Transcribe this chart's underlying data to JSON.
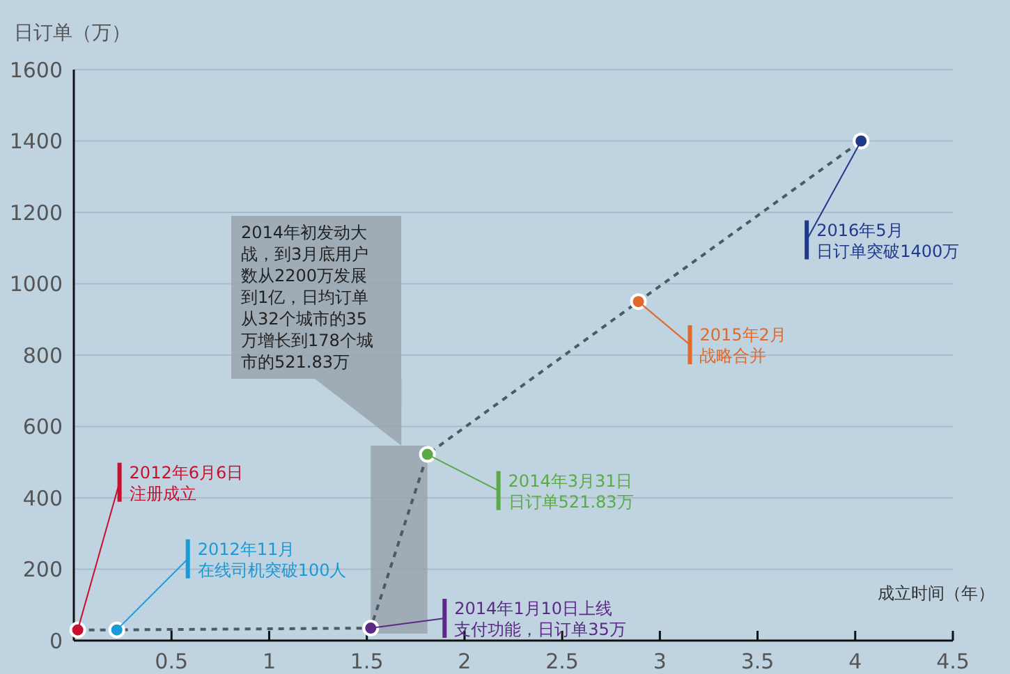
{
  "chart_data": {
    "type": "line",
    "ylabel": "日订单（万）",
    "xlabel": "成立时间（年）",
    "x": [
      0.02,
      0.22,
      1.52,
      1.81,
      2.89,
      4.03
    ],
    "series": [
      {
        "type": "line",
        "color": "#4a5a66",
        "colors": [
          "#c8102e",
          "#1a9ad6",
          "#5b2a86",
          "#5aab46",
          "#e06a2c",
          "#1f3a8a"
        ],
        "values": [
          30,
          30,
          35,
          521.83,
          950,
          1400
        ]
      }
    ],
    "xlim": [
      0,
      4.5
    ],
    "xticks": [
      0.5,
      1,
      1.5,
      2,
      2.5,
      3,
      3.5,
      4,
      4.5
    ],
    "ylim": [
      0,
      1600
    ],
    "yticks": [
      0,
      200,
      400,
      600,
      800,
      1000,
      1200,
      1400,
      1600
    ],
    "grid": "y",
    "marker": "circle",
    "line_style": "dashed",
    "annotations": [
      {
        "text": "2012年6月6日注册成立",
        "x": 0.02,
        "y": 30
      },
      {
        "text": "2012年11月在线司机突破100人",
        "x": 0.22,
        "y": 30
      },
      {
        "text": "2014年1月10日上线支付功能，日订单35万",
        "x": 1.52,
        "y": 35
      },
      {
        "text": "2014年3月31日日订单521.83万",
        "x": 1.81,
        "y": 521.83
      },
      {
        "text": "2015年2月战略合并",
        "x": 2.89,
        "y": 950
      },
      {
        "text": "2016年5月日订单突破1400万",
        "x": 4.03,
        "y": 1400
      },
      "2014年初发动大战，到3月底用户数从2200万发展到1亿，日均订单从32个城市的35万增长到178个城市的521.83万"
    ],
    "bands": [
      {
        "axis": "x",
        "from": 1.52,
        "to": 1.81,
        "color": "#9aa4ad"
      }
    ]
  }
}
